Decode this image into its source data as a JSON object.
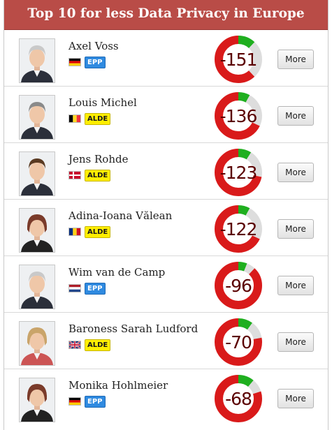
{
  "header": {
    "title": "Top 10 for less Data Privacy in Europe"
  },
  "colors": {
    "header_bg": "#b94c47",
    "donut_red": "#d91a1a",
    "donut_green": "#1faf1f",
    "donut_gray": "#dddddd",
    "score_text": "#5a0000",
    "badge_epp": "#2f8ae0",
    "badge_alde": "#ffee00"
  },
  "more_label": "More",
  "members": [
    {
      "name": "Axel Voss",
      "country": "DE",
      "party": "EPP",
      "score": "-151",
      "red_fraction": 0.62,
      "green_fraction": 0.12,
      "photo": "male-portrait-icon"
    },
    {
      "name": "Louis Michel",
      "country": "BE",
      "party": "ALDE",
      "score": "-136",
      "red_fraction": 0.68,
      "green_fraction": 0.08,
      "photo": "male-portrait-icon"
    },
    {
      "name": "Jens Rohde",
      "country": "DK",
      "party": "ALDE",
      "score": "-123",
      "red_fraction": 0.72,
      "green_fraction": 0.09,
      "photo": "male-portrait-icon"
    },
    {
      "name": "Adina-Ioana Vălean",
      "country": "RO",
      "party": "ALDE",
      "score": "-122",
      "red_fraction": 0.68,
      "green_fraction": 0.08,
      "photo": "female-portrait-icon"
    },
    {
      "name": "Wim van de Camp",
      "country": "NL",
      "party": "EPP",
      "score": "-96",
      "red_fraction": 0.88,
      "green_fraction": 0.06,
      "photo": "male-portrait-icon"
    },
    {
      "name": "Baroness Sarah Ludford",
      "country": "GB",
      "party": "ALDE",
      "score": "-70",
      "red_fraction": 0.78,
      "green_fraction": 0.1,
      "photo": "female-portrait-icon"
    },
    {
      "name": "Monika Hohlmeier",
      "country": "DE",
      "party": "EPP",
      "score": "-68",
      "red_fraction": 0.8,
      "green_fraction": 0.11,
      "photo": "female-portrait-icon"
    }
  ]
}
